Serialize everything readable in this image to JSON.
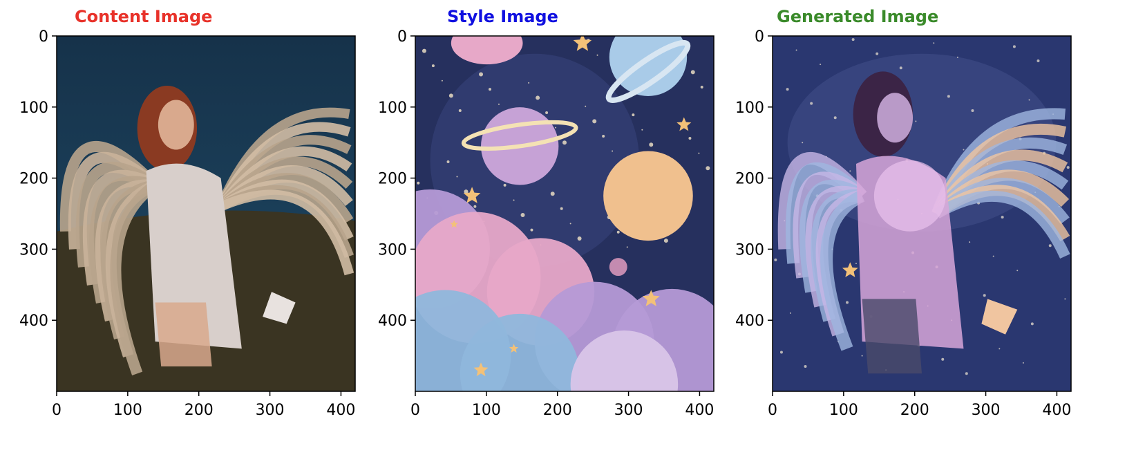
{
  "chart_data": [
    {
      "type": "image",
      "title": "Content Image",
      "title_color": "#e8322a",
      "image": "photo of a young woman with large feathered angel wings kneeling on grass against a dark blue sky",
      "xlim": [
        0,
        420
      ],
      "ylim": [
        500,
        0
      ],
      "xticks": [
        0,
        100,
        200,
        300,
        400
      ],
      "yticks": [
        0,
        100,
        200,
        300,
        400
      ],
      "palette": {
        "sky": "#1f4a66",
        "sky_top": "#16324a",
        "grass": "#3a3422",
        "wing": "#b8a48c",
        "skin": "#d9a98d",
        "hair": "#8a3a22",
        "dress": "#d8cfcb"
      }
    },
    {
      "type": "image",
      "title": "Style Image",
      "title_color": "#1010e0",
      "image": "watercolor painting of pastel planets, stars and pink and blue clouds on a dark navy space background",
      "xlim": [
        0,
        420
      ],
      "ylim": [
        500,
        0
      ],
      "xticks": [
        0,
        100,
        200,
        300,
        400
      ],
      "yticks": [
        0,
        100,
        200,
        300,
        400
      ],
      "palette": {
        "space": "#26305e",
        "space_light": "#3d4a86",
        "cloud_pink": "#e7a8c8",
        "cloud_blue": "#8fb7dc",
        "cloud_purple": "#b59ad6",
        "planet_orange": "#f0c08e",
        "planet_blue": "#a9cbe8",
        "planet_purple": "#c6a2d6",
        "star": "#f3c178"
      }
    },
    {
      "type": "image",
      "title": "Generated Image",
      "title_color": "#3a8a2a",
      "image": "stylized blend of the kneeling winged figure rendered in the pastel watercolor space style",
      "xlim": [
        0,
        420
      ],
      "ylim": [
        500,
        0
      ],
      "xticks": [
        0,
        100,
        200,
        300,
        400
      ],
      "yticks": [
        0,
        100,
        200,
        300,
        400
      ],
      "palette": {
        "space": "#2a3770",
        "space_light": "#44528c",
        "figure_pink": "#d7a6d8",
        "wing_blue": "#9fb6e0",
        "wing_peach": "#f0c5a0",
        "hair": "#3b2446",
        "glow": "#e9c2ec"
      }
    }
  ]
}
